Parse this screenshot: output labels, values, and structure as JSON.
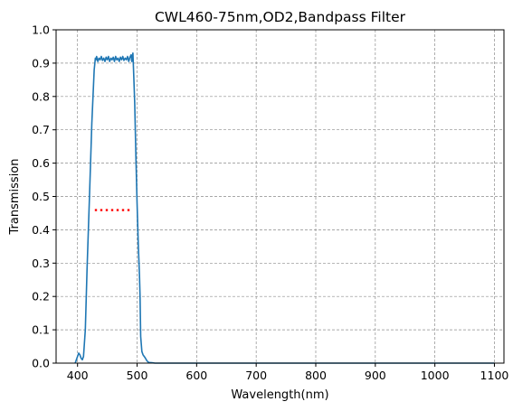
{
  "chart_data": {
    "type": "line",
    "title": "CWL460-75nm,OD2,Bandpass Filter",
    "xlabel": "Wavelength(nm)",
    "ylabel": "Transmission",
    "xlim": [
      364,
      1116
    ],
    "ylim": [
      0,
      1
    ],
    "x_ticks": [
      400,
      500,
      600,
      700,
      800,
      900,
      1000,
      1100
    ],
    "y_ticks": [
      0.0,
      0.1,
      0.2,
      0.3,
      0.4,
      0.5,
      0.6,
      0.7,
      0.8,
      0.9,
      1.0
    ],
    "x_tick_labels": [
      "400",
      "500",
      "600",
      "700",
      "800",
      "900",
      "1000",
      "1100"
    ],
    "y_tick_labels": [
      "0.0",
      "0.1",
      "0.2",
      "0.3",
      "0.4",
      "0.5",
      "0.6",
      "0.7",
      "0.8",
      "0.9",
      "1.0"
    ],
    "grid": true,
    "legend": "none",
    "series": [
      {
        "color": "#1f77b4",
        "style": "solid",
        "x": [
          396,
          398,
          400,
          402,
          404,
          406,
          408,
          410,
          413,
          416,
          420,
          424,
          428,
          430,
          431,
          432,
          434,
          436,
          438,
          440,
          442,
          444,
          446,
          448,
          450,
          452,
          454,
          456,
          458,
          460,
          462,
          464,
          466,
          468,
          470,
          472,
          474,
          476,
          478,
          480,
          482,
          484,
          486,
          488,
          490,
          491,
          492,
          493,
          494,
          496,
          498,
          500,
          502,
          504,
          505,
          506,
          508,
          510,
          512,
          514,
          516,
          518,
          520,
          525,
          530,
          540,
          560,
          600,
          700,
          800,
          900,
          1000,
          1100
        ],
        "y": [
          0.0,
          0.01,
          0.02,
          0.03,
          0.025,
          0.015,
          0.01,
          0.02,
          0.1,
          0.28,
          0.5,
          0.72,
          0.88,
          0.915,
          0.91,
          0.92,
          0.905,
          0.915,
          0.91,
          0.92,
          0.908,
          0.915,
          0.905,
          0.918,
          0.91,
          0.92,
          0.905,
          0.915,
          0.91,
          0.918,
          0.905,
          0.92,
          0.91,
          0.915,
          0.905,
          0.918,
          0.91,
          0.92,
          0.908,
          0.915,
          0.91,
          0.92,
          0.905,
          0.918,
          0.925,
          0.905,
          0.92,
          0.93,
          0.88,
          0.78,
          0.62,
          0.48,
          0.36,
          0.26,
          0.2,
          0.08,
          0.035,
          0.025,
          0.02,
          0.015,
          0.008,
          0.004,
          0.002,
          0.001,
          0.0,
          0.0,
          0.0,
          0.0,
          0.0,
          0.0,
          0.0,
          0.0,
          0.0
        ]
      },
      {
        "color": "#ff0000",
        "style": "dotted",
        "x": [
          429,
          491
        ],
        "y": [
          0.459,
          0.459
        ]
      }
    ]
  }
}
